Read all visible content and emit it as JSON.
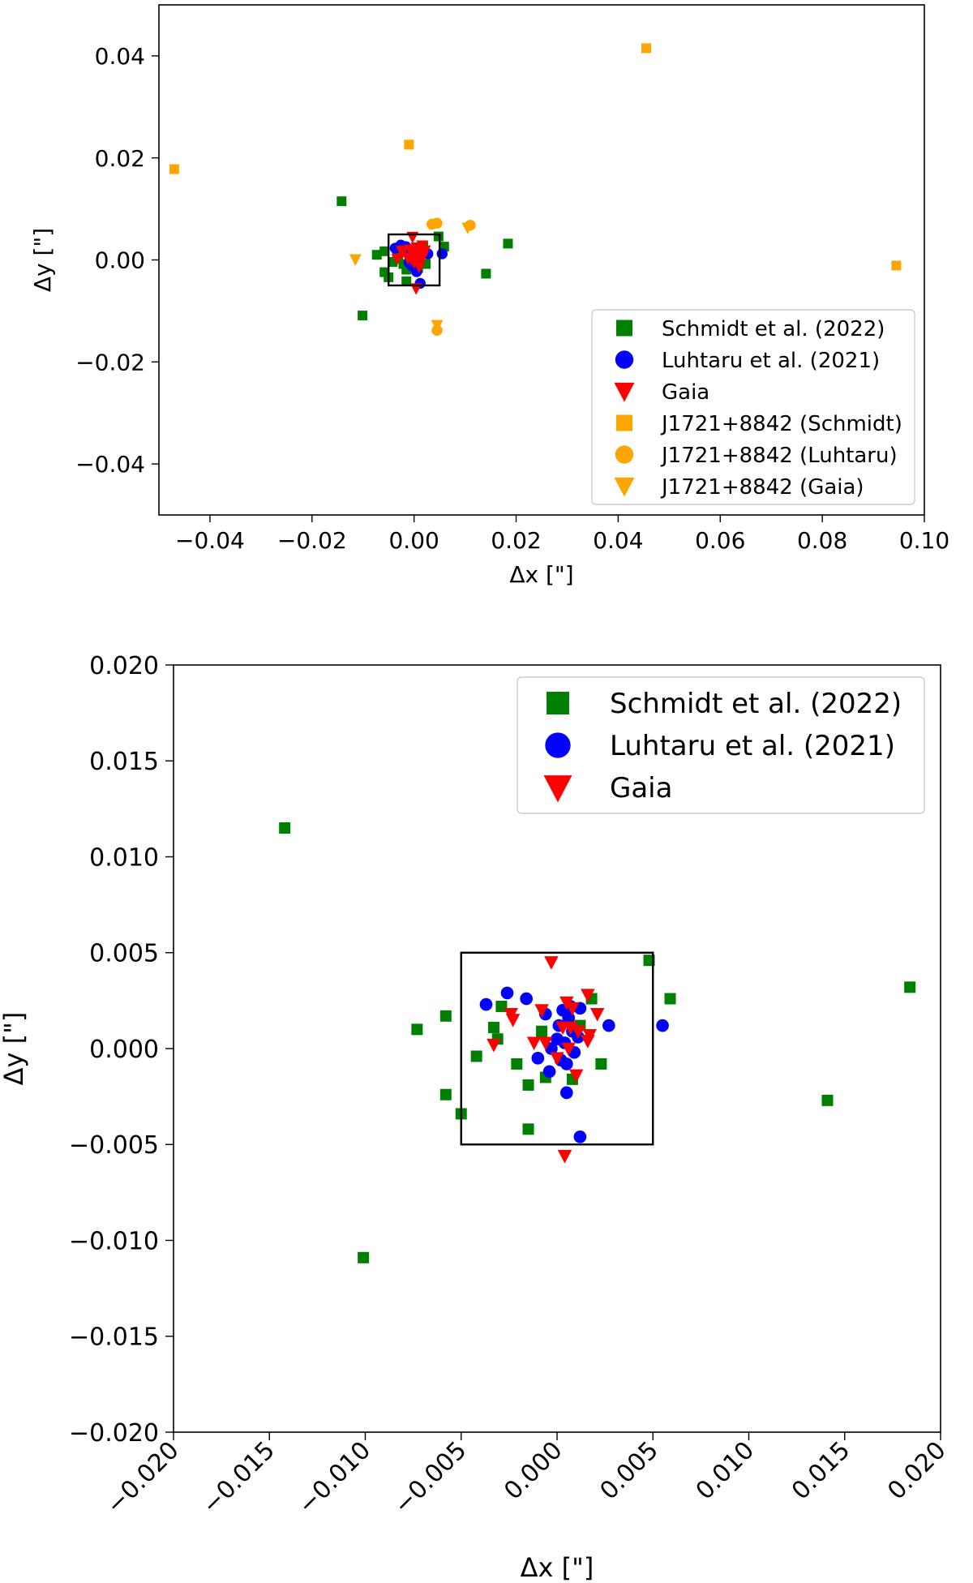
{
  "colors": {
    "schmidt": "#008000",
    "luhtaru": "#0000ff",
    "gaia": "#ff0000",
    "j1721": "#ffa500",
    "frame": "#000000",
    "legend_border": "#cccccc"
  },
  "chart_data": [
    {
      "type": "scatter",
      "xlabel": "Δx [\"]",
      "ylabel": "Δy [\"]",
      "xlim": [
        -0.05,
        0.1
      ],
      "ylim": [
        -0.05,
        0.05
      ],
      "xticks": [
        -0.04,
        -0.02,
        0.0,
        0.02,
        0.04,
        0.06,
        0.08,
        0.1
      ],
      "xtick_labels": [
        "−0.04",
        "−0.02",
        "0.00",
        "0.02",
        "0.04",
        "0.06",
        "0.08",
        "0.10"
      ],
      "yticks": [
        0.04,
        0.02,
        0.0,
        -0.02,
        -0.04
      ],
      "ytick_labels": [
        "0.04",
        "0.02",
        "0.00",
        "−0.02",
        "−0.04"
      ],
      "grid": false,
      "legend_position": "lower-right",
      "box": {
        "x": [
          -0.005,
          0.005
        ],
        "y": [
          -0.005,
          0.005
        ]
      },
      "series": [
        {
          "name": "Schmidt et al. (2022)",
          "marker": "square",
          "color_key": "schmidt",
          "points": [
            [
              -0.0142,
              0.0115
            ],
            [
              -0.0101,
              -0.0109
            ],
            [
              -0.0073,
              0.001
            ],
            [
              -0.0058,
              0.0017
            ],
            [
              -0.0058,
              -0.0024
            ],
            [
              -0.005,
              -0.0034
            ],
            [
              -0.0042,
              -0.0004
            ],
            [
              -0.0033,
              0.0011
            ],
            [
              -0.0031,
              0.0005
            ],
            [
              -0.0029,
              0.0022
            ],
            [
              -0.0021,
              -0.0008
            ],
            [
              -0.0015,
              -0.0019
            ],
            [
              -0.0015,
              -0.0042
            ],
            [
              -0.0008,
              0.0009
            ],
            [
              -0.0006,
              -0.0015
            ],
            [
              0.0008,
              -0.0016
            ],
            [
              0.0012,
              0.0012
            ],
            [
              0.0018,
              0.0026
            ],
            [
              0.0023,
              -0.0008
            ],
            [
              0.0048,
              0.0046
            ],
            [
              0.0059,
              0.0026
            ],
            [
              0.0141,
              -0.0027
            ],
            [
              0.0184,
              0.0032
            ]
          ]
        },
        {
          "name": "Luhtaru et al. (2021)",
          "marker": "circle",
          "color_key": "luhtaru",
          "points": [
            [
              -0.0037,
              0.0023
            ],
            [
              -0.0026,
              0.0029
            ],
            [
              -0.0016,
              0.0026
            ],
            [
              -0.0006,
              0.0018
            ],
            [
              -0.0004,
              -0.0012
            ],
            [
              -0.0003,
              0.0
            ],
            [
              0.0,
              0.0005
            ],
            [
              0.0001,
              0.0012
            ],
            [
              0.0002,
              -0.0006
            ],
            [
              0.0004,
              0.0003
            ],
            [
              0.0005,
              -0.0008
            ],
            [
              0.0005,
              -0.0023
            ],
            [
              0.0006,
              0.0016
            ],
            [
              0.0007,
              0.0022
            ],
            [
              0.0008,
              0.0009
            ],
            [
              0.0009,
              -0.0002
            ],
            [
              0.0011,
              0.0006
            ],
            [
              0.0012,
              0.0021
            ],
            [
              0.0012,
              -0.0046
            ],
            [
              0.0027,
              0.0012
            ],
            [
              0.0055,
              0.0012
            ],
            [
              -0.001,
              -0.0005
            ],
            [
              0.0003,
              0.002
            ]
          ]
        },
        {
          "name": "Gaia",
          "marker": "triangle-down",
          "color_key": "gaia",
          "points": [
            [
              -0.0003,
              0.0045
            ],
            [
              0.0004,
              -0.0056
            ],
            [
              0.0016,
              0.0028
            ],
            [
              0.0008,
              0.0021
            ],
            [
              0.0021,
              0.0018
            ],
            [
              -0.0008,
              0.002
            ],
            [
              -0.0023,
              0.0015
            ],
            [
              -0.0024,
              0.0018
            ],
            [
              -0.0033,
              0.0002
            ],
            [
              -0.0012,
              0.0003
            ],
            [
              -0.0006,
              0.0003
            ],
            [
              0.0003,
              0.0011
            ],
            [
              0.0007,
              0.0011
            ],
            [
              0.0011,
              0.0009
            ],
            [
              0.0016,
              0.0004
            ],
            [
              0.0006,
              0.0
            ],
            [
              0.001,
              -0.0014
            ],
            [
              0.0,
              -0.0005
            ],
            [
              0.0005,
              0.0024
            ],
            [
              0.0017,
              0.0007
            ]
          ]
        },
        {
          "name": "J1721+8842 (Schmidt)",
          "marker": "square",
          "color_key": "j1721",
          "points": [
            [
              -0.047,
              0.0178
            ],
            [
              -0.001,
              0.0226
            ],
            [
              0.0455,
              0.0415
            ],
            [
              0.0945,
              -0.0011
            ]
          ]
        },
        {
          "name": "J1721+8842 (Luhtaru)",
          "marker": "circle",
          "color_key": "j1721",
          "points": [
            [
              0.0035,
              0.007
            ],
            [
              0.0045,
              0.0072
            ],
            [
              0.011,
              0.0068
            ],
            [
              0.0045,
              -0.0138
            ]
          ]
        },
        {
          "name": "J1721+8842 (Gaia)",
          "marker": "triangle-down",
          "color_key": "j1721",
          "points": [
            [
              -0.0115,
              0.0001
            ],
            [
              0.0105,
              0.0063
            ],
            [
              0.0045,
              -0.0128
            ]
          ]
        }
      ]
    },
    {
      "type": "scatter",
      "xlabel": "Δx [\"]",
      "ylabel": "Δy [\"]",
      "xlim": [
        -0.02,
        0.02
      ],
      "ylim": [
        -0.02,
        0.02
      ],
      "xticks": [
        -0.02,
        -0.015,
        -0.01,
        -0.005,
        0.0,
        0.005,
        0.01,
        0.015,
        0.02
      ],
      "xtick_labels": [
        "−0.020",
        "−0.015",
        "−0.010",
        "−0.005",
        "0.000",
        "0.005",
        "0.010",
        "0.015",
        "0.020"
      ],
      "yticks": [
        0.02,
        0.015,
        0.01,
        0.005,
        0.0,
        -0.005,
        -0.01,
        -0.015,
        -0.02
      ],
      "ytick_labels": [
        "0.020",
        "0.015",
        "0.010",
        "0.005",
        "0.000",
        "−0.005",
        "−0.010",
        "−0.015",
        "−0.020"
      ],
      "grid": false,
      "legend_position": "top-right",
      "box": {
        "x": [
          -0.005,
          0.005
        ],
        "y": [
          -0.005,
          0.005
        ]
      },
      "series": [
        {
          "name": "Schmidt et al. (2022)",
          "marker": "square",
          "color_key": "schmidt",
          "points": [
            [
              -0.0142,
              0.0115
            ],
            [
              -0.0101,
              -0.0109
            ],
            [
              -0.0073,
              0.001
            ],
            [
              -0.0058,
              0.0017
            ],
            [
              -0.0058,
              -0.0024
            ],
            [
              -0.005,
              -0.0034
            ],
            [
              -0.0042,
              -0.0004
            ],
            [
              -0.0033,
              0.0011
            ],
            [
              -0.0031,
              0.0005
            ],
            [
              -0.0029,
              0.0022
            ],
            [
              -0.0021,
              -0.0008
            ],
            [
              -0.0015,
              -0.0019
            ],
            [
              -0.0015,
              -0.0042
            ],
            [
              -0.0008,
              0.0009
            ],
            [
              -0.0006,
              -0.0015
            ],
            [
              0.0008,
              -0.0016
            ],
            [
              0.0012,
              0.0012
            ],
            [
              0.0018,
              0.0026
            ],
            [
              0.0023,
              -0.0008
            ],
            [
              0.0048,
              0.0046
            ],
            [
              0.0059,
              0.0026
            ],
            [
              0.0141,
              -0.0027
            ],
            [
              0.0184,
              0.0032
            ]
          ]
        },
        {
          "name": "Luhtaru et al. (2021)",
          "marker": "circle",
          "color_key": "luhtaru",
          "points": [
            [
              -0.0037,
              0.0023
            ],
            [
              -0.0026,
              0.0029
            ],
            [
              -0.0016,
              0.0026
            ],
            [
              -0.0006,
              0.0018
            ],
            [
              -0.0004,
              -0.0012
            ],
            [
              -0.0003,
              0.0
            ],
            [
              0.0,
              0.0005
            ],
            [
              0.0001,
              0.0012
            ],
            [
              0.0002,
              -0.0006
            ],
            [
              0.0004,
              0.0003
            ],
            [
              0.0005,
              -0.0008
            ],
            [
              0.0005,
              -0.0023
            ],
            [
              0.0006,
              0.0016
            ],
            [
              0.0007,
              0.0022
            ],
            [
              0.0008,
              0.0009
            ],
            [
              0.0009,
              -0.0002
            ],
            [
              0.0011,
              0.0006
            ],
            [
              0.0012,
              0.0021
            ],
            [
              0.0012,
              -0.0046
            ],
            [
              0.0027,
              0.0012
            ],
            [
              0.0055,
              0.0012
            ],
            [
              -0.001,
              -0.0005
            ],
            [
              0.0003,
              0.002
            ]
          ]
        },
        {
          "name": "Gaia",
          "marker": "triangle-down",
          "color_key": "gaia",
          "points": [
            [
              -0.0003,
              0.0045
            ],
            [
              0.0004,
              -0.0056
            ],
            [
              0.0016,
              0.0028
            ],
            [
              0.0008,
              0.0021
            ],
            [
              0.0021,
              0.0018
            ],
            [
              -0.0008,
              0.002
            ],
            [
              -0.0023,
              0.0015
            ],
            [
              -0.0024,
              0.0018
            ],
            [
              -0.0033,
              0.0002
            ],
            [
              -0.0012,
              0.0003
            ],
            [
              -0.0006,
              0.0003
            ],
            [
              0.0003,
              0.0011
            ],
            [
              0.0007,
              0.0011
            ],
            [
              0.0011,
              0.0009
            ],
            [
              0.0016,
              0.0004
            ],
            [
              0.0006,
              0.0
            ],
            [
              0.001,
              -0.0014
            ],
            [
              0.0,
              -0.0005
            ],
            [
              0.0005,
              0.0024
            ],
            [
              0.0017,
              0.0007
            ]
          ]
        }
      ]
    }
  ]
}
